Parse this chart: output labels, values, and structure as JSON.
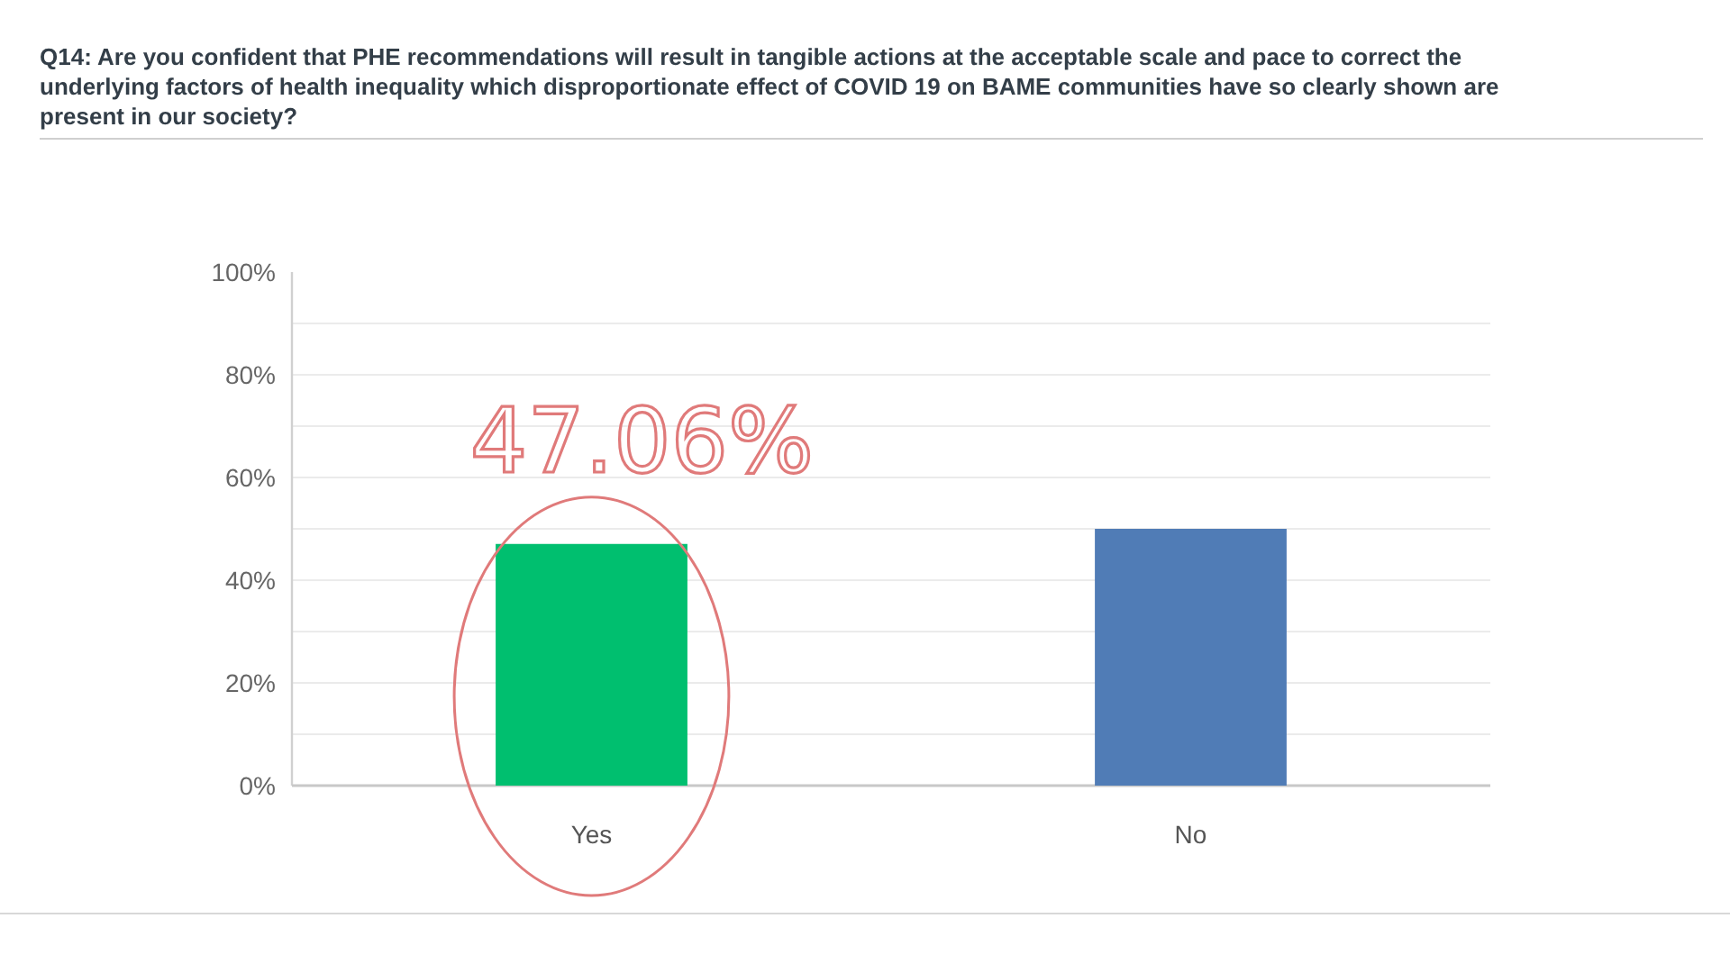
{
  "chart_data": {
    "type": "bar",
    "title": "Q14: Are you confident that PHE recommendations will result in tangible actions at the acceptable scale and pace to correct the underlying factors of health inequality which disproportionate effect of COVID 19 on BAME communities have so clearly shown are present in our society?",
    "categories": [
      "Yes",
      "No"
    ],
    "values": [
      47.06,
      50
    ],
    "colors": [
      "#00bf6f",
      "#507cb6"
    ],
    "ylim": [
      0,
      100
    ],
    "yticks": [
      {
        "value": 0,
        "label": "0%"
      },
      {
        "value": 10,
        "label": null
      },
      {
        "value": 20,
        "label": "20%"
      },
      {
        "value": 30,
        "label": null
      },
      {
        "value": 40,
        "label": "40%"
      },
      {
        "value": 50,
        "label": null
      },
      {
        "value": 60,
        "label": "60%"
      },
      {
        "value": 70,
        "label": null
      },
      {
        "value": 80,
        "label": "80%"
      },
      {
        "value": 90,
        "label": null
      },
      {
        "value": 100,
        "label": "100%"
      }
    ],
    "grid": "y",
    "annotations": [
      {
        "text": "47.06%",
        "x": "Yes",
        "y": 47.06
      }
    ]
  }
}
